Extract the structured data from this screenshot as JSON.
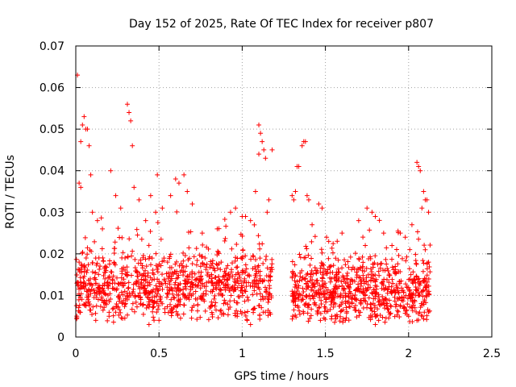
{
  "chart_data": {
    "type": "scatter",
    "title": "Day 152 of 2025, Rate Of TEC Index for receiver p807",
    "xlabel": "GPS time / hours",
    "ylabel": "ROTI / TECUs",
    "xlim": [
      0,
      2.5
    ],
    "ylim": [
      0,
      0.07
    ],
    "xticks": [
      0,
      0.5,
      1,
      1.5,
      2,
      2.5
    ],
    "xtick_labels": [
      "0",
      "0.5",
      "1",
      "1.5",
      "2",
      "2.5"
    ],
    "yticks": [
      0,
      0.01,
      0.02,
      0.03,
      0.04,
      0.05,
      0.06,
      0.07
    ],
    "ytick_labels": [
      "0",
      "0.01",
      "0.02",
      "0.03",
      "0.04",
      "0.05",
      "0.06",
      "0.07"
    ],
    "grid": true,
    "marker": "+",
    "color": "#ff0000",
    "series": [
      {
        "name": "ROTI",
        "points": [
          [
            0.01,
            0.063
          ],
          [
            0.02,
            0.037
          ],
          [
            0.03,
            0.036
          ],
          [
            0.03,
            0.047
          ],
          [
            0.04,
            0.051
          ],
          [
            0.05,
            0.053
          ],
          [
            0.06,
            0.05
          ],
          [
            0.07,
            0.05
          ],
          [
            0.08,
            0.046
          ],
          [
            0.09,
            0.039
          ],
          [
            0.02,
            0.018
          ],
          [
            0.05,
            0.017
          ],
          [
            0.1,
            0.03
          ],
          [
            0.13,
            0.028
          ],
          [
            0.16,
            0.026
          ],
          [
            0.21,
            0.04
          ],
          [
            0.24,
            0.034
          ],
          [
            0.27,
            0.031
          ],
          [
            0.31,
            0.056
          ],
          [
            0.32,
            0.054
          ],
          [
            0.33,
            0.052
          ],
          [
            0.34,
            0.046
          ],
          [
            0.35,
            0.036
          ],
          [
            0.38,
            0.033
          ],
          [
            0.42,
            0.028
          ],
          [
            0.45,
            0.034
          ],
          [
            0.48,
            0.03
          ],
          [
            0.49,
            0.039
          ],
          [
            0.52,
            0.031
          ],
          [
            0.57,
            0.034
          ],
          [
            0.6,
            0.038
          ],
          [
            0.62,
            0.037
          ],
          [
            0.65,
            0.039
          ],
          [
            0.67,
            0.035
          ],
          [
            0.7,
            0.032
          ],
          [
            0.76,
            0.025
          ],
          [
            0.85,
            0.026
          ],
          [
            0.93,
            0.03
          ],
          [
            0.96,
            0.031
          ],
          [
            1.0,
            0.029
          ],
          [
            1.02,
            0.029
          ],
          [
            1.05,
            0.028
          ],
          [
            1.08,
            0.035
          ],
          [
            1.1,
            0.051
          ],
          [
            1.11,
            0.049
          ],
          [
            1.12,
            0.047
          ],
          [
            1.1,
            0.044
          ],
          [
            1.14,
            0.043
          ],
          [
            1.13,
            0.045
          ],
          [
            1.16,
            0.033
          ],
          [
            1.18,
            0.045
          ],
          [
            1.15,
            0.03
          ],
          [
            1.05,
            0.003
          ],
          [
            1.03,
            0.004
          ],
          [
            1.3,
            0.034
          ],
          [
            1.31,
            0.033
          ],
          [
            1.32,
            0.035
          ],
          [
            1.34,
            0.041
          ],
          [
            1.33,
            0.041
          ],
          [
            1.36,
            0.046
          ],
          [
            1.37,
            0.047
          ],
          [
            1.38,
            0.047
          ],
          [
            1.39,
            0.034
          ],
          [
            1.4,
            0.033
          ],
          [
            1.42,
            0.027
          ],
          [
            1.46,
            0.032
          ],
          [
            1.48,
            0.031
          ],
          [
            1.52,
            0.023
          ],
          [
            1.6,
            0.025
          ],
          [
            1.7,
            0.028
          ],
          [
            1.75,
            0.031
          ],
          [
            1.78,
            0.03
          ],
          [
            1.8,
            0.029
          ],
          [
            1.85,
            0.025
          ],
          [
            1.9,
            0.022
          ],
          [
            1.95,
            0.025
          ],
          [
            1.98,
            0.024
          ],
          [
            2.02,
            0.027
          ],
          [
            2.05,
            0.042
          ],
          [
            2.06,
            0.041
          ],
          [
            2.07,
            0.04
          ],
          [
            2.08,
            0.031
          ],
          [
            2.09,
            0.035
          ],
          [
            2.1,
            0.033
          ],
          [
            2.11,
            0.033
          ],
          [
            2.12,
            0.03
          ],
          [
            2.1,
            0.021
          ],
          [
            2.12,
            0.018
          ],
          [
            0.44,
            0.003
          ],
          [
            0.5,
            0.004
          ],
          [
            0.97,
            0.005
          ],
          [
            1.47,
            0.004
          ],
          [
            1.62,
            0.004
          ],
          [
            1.8,
            0.003
          ],
          [
            1.82,
            0.004
          ],
          [
            2.0,
            0.005
          ],
          [
            2.05,
            0.004
          ],
          [
            2.12,
            0.006
          ],
          [
            0.12,
            0.004
          ],
          [
            0.2,
            0.005
          ]
        ],
        "clusters": [
          {
            "x_range": [
              0.0,
              1.18
            ],
            "y_center": 0.012,
            "y_spread": 0.009,
            "count": 950
          },
          {
            "x_range": [
              1.3,
              2.13
            ],
            "y_center": 0.011,
            "y_spread": 0.009,
            "count": 750
          }
        ]
      }
    ]
  }
}
